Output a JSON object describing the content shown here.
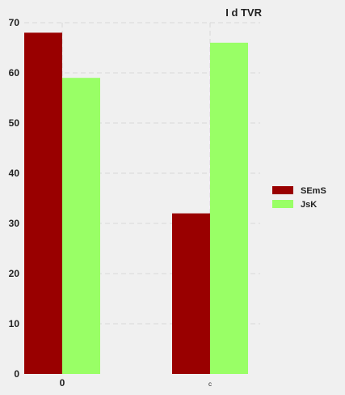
{
  "chart_data": {
    "type": "bar",
    "title": "I d TVR",
    "categories": [
      "0",
      "c"
    ],
    "series": [
      {
        "name": "SEmS",
        "values": [
          68,
          32
        ],
        "color": "#990000"
      },
      {
        "name": "JsK",
        "values": [
          59,
          66
        ],
        "color": "#99ff66"
      }
    ],
    "ylim": [
      0,
      70
    ],
    "yticks": [
      0,
      10,
      20,
      30,
      40,
      50,
      60,
      70
    ],
    "grid": true,
    "legend_position": "right"
  }
}
